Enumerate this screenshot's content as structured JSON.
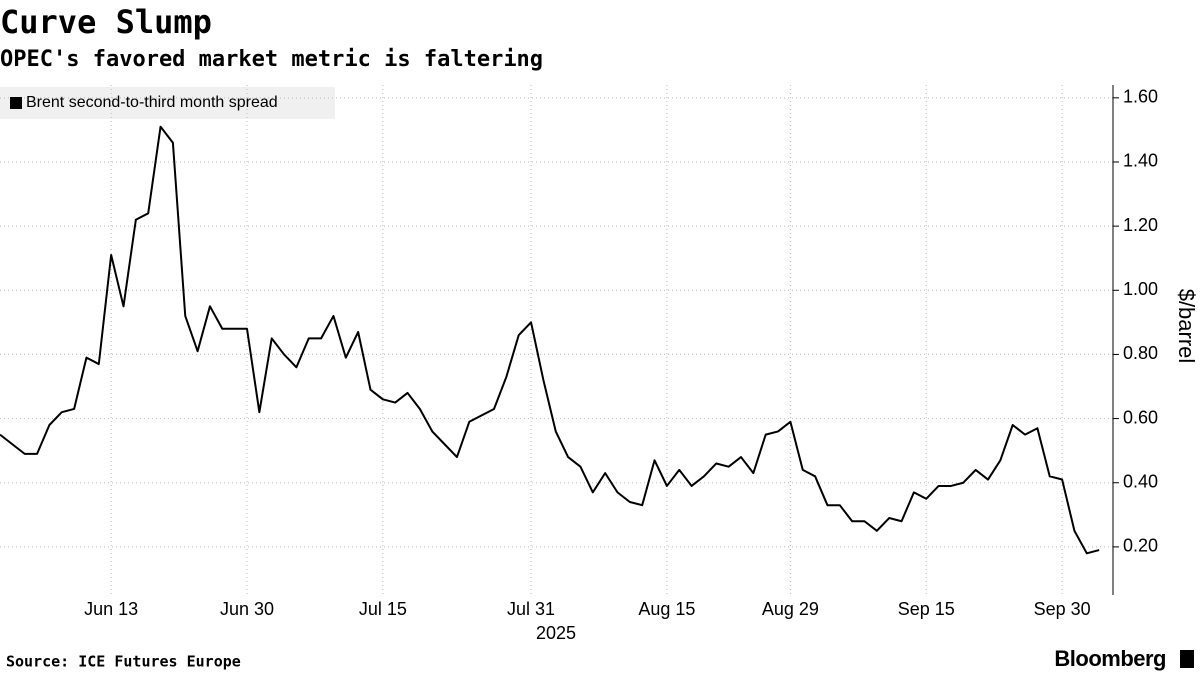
{
  "chart_data": {
    "type": "line",
    "title": "Curve Slump",
    "subtitle": "OPEC's favored market metric is faltering",
    "y_label": "$/barrel",
    "x_label": "2025",
    "source": "Source: ICE Futures Europe",
    "brand": "Bloomberg",
    "grid": true,
    "legend": "top-left",
    "x": [
      "2025-06-02",
      "2025-06-03",
      "2025-06-04",
      "2025-06-05",
      "2025-06-06",
      "2025-06-09",
      "2025-06-10",
      "2025-06-11",
      "2025-06-12",
      "2025-06-13",
      "2025-06-16",
      "2025-06-17",
      "2025-06-18",
      "2025-06-19",
      "2025-06-20",
      "2025-06-23",
      "2025-06-24",
      "2025-06-25",
      "2025-06-26",
      "2025-06-27",
      "2025-06-30",
      "2025-07-01",
      "2025-07-02",
      "2025-07-03",
      "2025-07-04",
      "2025-07-07",
      "2025-07-08",
      "2025-07-09",
      "2025-07-10",
      "2025-07-11",
      "2025-07-14",
      "2025-07-15",
      "2025-07-16",
      "2025-07-17",
      "2025-07-18",
      "2025-07-21",
      "2025-07-22",
      "2025-07-23",
      "2025-07-24",
      "2025-07-25",
      "2025-07-28",
      "2025-07-29",
      "2025-07-30",
      "2025-07-31",
      "2025-08-01",
      "2025-08-04",
      "2025-08-05",
      "2025-08-06",
      "2025-08-07",
      "2025-08-08",
      "2025-08-11",
      "2025-08-12",
      "2025-08-13",
      "2025-08-14",
      "2025-08-15",
      "2025-08-18",
      "2025-08-19",
      "2025-08-20",
      "2025-08-21",
      "2025-08-22",
      "2025-08-25",
      "2025-08-26",
      "2025-08-27",
      "2025-08-28",
      "2025-08-29",
      "2025-09-01",
      "2025-09-02",
      "2025-09-03",
      "2025-09-04",
      "2025-09-05",
      "2025-09-08",
      "2025-09-09",
      "2025-09-10",
      "2025-09-11",
      "2025-09-12",
      "2025-09-15",
      "2025-09-16",
      "2025-09-17",
      "2025-09-18",
      "2025-09-19",
      "2025-09-22",
      "2025-09-23",
      "2025-09-24",
      "2025-09-25",
      "2025-09-26",
      "2025-09-29",
      "2025-09-30",
      "2025-10-01",
      "2025-10-02",
      "2025-10-03"
    ],
    "series": [
      {
        "name": "Brent second-to-third month spread",
        "color": "#000000",
        "values": [
          0.55,
          0.52,
          0.49,
          0.49,
          0.58,
          0.62,
          0.63,
          0.79,
          0.77,
          1.11,
          0.95,
          1.22,
          1.24,
          1.51,
          1.46,
          0.92,
          0.81,
          0.95,
          0.88,
          0.88,
          0.88,
          0.62,
          0.85,
          0.8,
          0.76,
          0.85,
          0.85,
          0.92,
          0.79,
          0.87,
          0.69,
          0.66,
          0.65,
          0.68,
          0.63,
          0.56,
          0.52,
          0.48,
          0.59,
          0.61,
          0.63,
          0.73,
          0.86,
          0.9,
          0.72,
          0.56,
          0.48,
          0.45,
          0.37,
          0.43,
          0.37,
          0.34,
          0.33,
          0.47,
          0.39,
          0.44,
          0.39,
          0.42,
          0.46,
          0.45,
          0.48,
          0.43,
          0.55,
          0.56,
          0.59,
          0.44,
          0.42,
          0.33,
          0.33,
          0.28,
          0.28,
          0.25,
          0.29,
          0.28,
          0.37,
          0.35,
          0.39,
          0.39,
          0.4,
          0.44,
          0.41,
          0.47,
          0.58,
          0.55,
          0.57,
          0.42,
          0.41,
          0.25,
          0.18,
          0.19
        ]
      }
    ],
    "ylim": [
      0.05,
      1.64
    ],
    "yticks": [
      {
        "value": 0.2,
        "label": "0.20"
      },
      {
        "value": 0.4,
        "label": "0.40"
      },
      {
        "value": 0.6,
        "label": "0.60"
      },
      {
        "value": 0.8,
        "label": "0.80"
      },
      {
        "value": 1.0,
        "label": "1.00"
      },
      {
        "value": 1.2,
        "label": "1.20"
      },
      {
        "value": 1.4,
        "label": "1.40"
      },
      {
        "value": 1.6,
        "label": "1.60"
      }
    ],
    "xticks": [
      {
        "value": "2025-06-13",
        "label": "Jun 13"
      },
      {
        "value": "2025-06-30",
        "label": "Jun 30"
      },
      {
        "value": "2025-07-15",
        "label": "Jul 15"
      },
      {
        "value": "2025-07-31",
        "label": "Jul 31"
      },
      {
        "value": "2025-08-15",
        "label": "Aug 15"
      },
      {
        "value": "2025-08-29",
        "label": "Aug 29"
      },
      {
        "value": "2025-09-15",
        "label": "Sep 15"
      },
      {
        "value": "2025-09-30",
        "label": "Sep 30"
      }
    ]
  }
}
